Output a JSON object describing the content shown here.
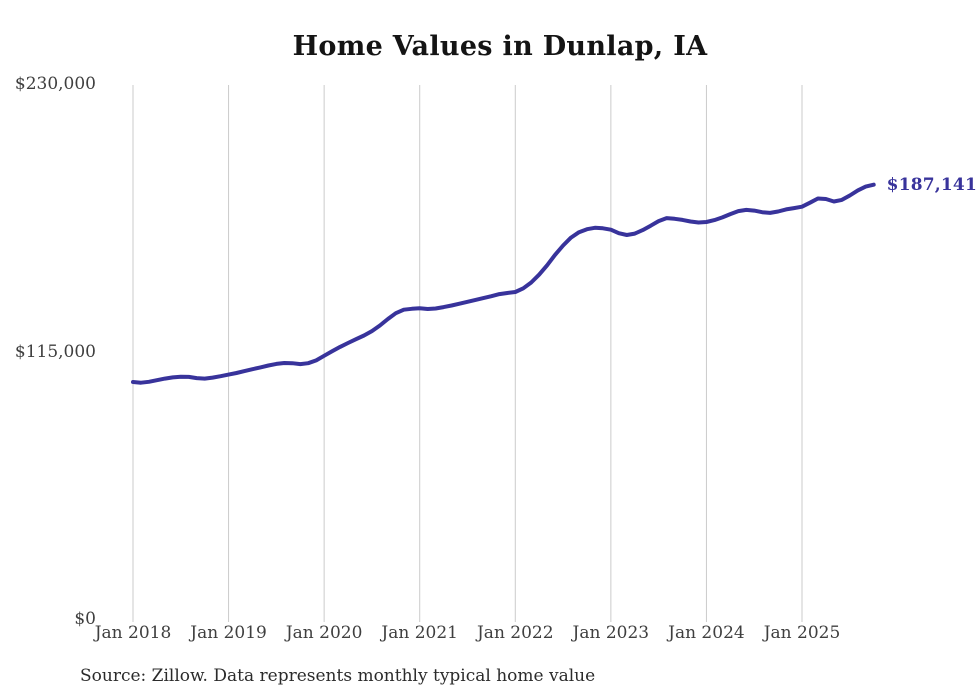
{
  "page": {
    "background": "#ffffff"
  },
  "chart_data": {
    "type": "line",
    "title": "Home Values in Dunlap, IA",
    "source_note": "Source: Zillow. Data represents monthly typical home value",
    "end_label": "$187,141",
    "latest_value": 187141,
    "line_color": "#38339b",
    "gridline_color": "#cbcbcb",
    "tick_text_color": "#3f3f3f",
    "ylim": [
      0,
      230000
    ],
    "y_ticks": [
      {
        "label": "$230,000",
        "value": 230000
      },
      {
        "label": "$115,000",
        "value": 115000
      },
      {
        "label": "$0",
        "value": 0
      }
    ],
    "x_tick_labels": [
      "Jan 2018",
      "Jan 2019",
      "Jan 2020",
      "Jan 2021",
      "Jan 2022",
      "Jan 2023",
      "Jan 2024",
      "Jan 2025"
    ],
    "x_start": "2018-01",
    "x_interval": "month",
    "legend": "none",
    "grid": "vertical-only",
    "series": [
      {
        "name": "Typical home value",
        "values": [
          102300,
          102000,
          102400,
          103100,
          103800,
          104300,
          104600,
          104500,
          104000,
          103800,
          104200,
          104800,
          105500,
          106200,
          107000,
          107800,
          108600,
          109400,
          110100,
          110500,
          110400,
          110000,
          110400,
          111600,
          113600,
          115500,
          117400,
          119100,
          120700,
          122300,
          124200,
          126600,
          129400,
          131900,
          133400,
          133800,
          134000,
          133700,
          133900,
          134500,
          135200,
          136000,
          136800,
          137600,
          138400,
          139200,
          140100,
          140600,
          141000,
          142600,
          145100,
          148500,
          152500,
          157000,
          161000,
          164400,
          166700,
          168000,
          168600,
          168400,
          167800,
          166300,
          165500,
          166100,
          167600,
          169500,
          171500,
          172800,
          172500,
          172000,
          171300,
          170900,
          171100,
          171900,
          173100,
          174500,
          175800,
          176300,
          176000,
          175300,
          175000,
          175600,
          176500,
          177100,
          177700,
          179400,
          181200,
          181000,
          179900,
          180600,
          182500,
          184700,
          186300,
          187141
        ]
      }
    ]
  }
}
